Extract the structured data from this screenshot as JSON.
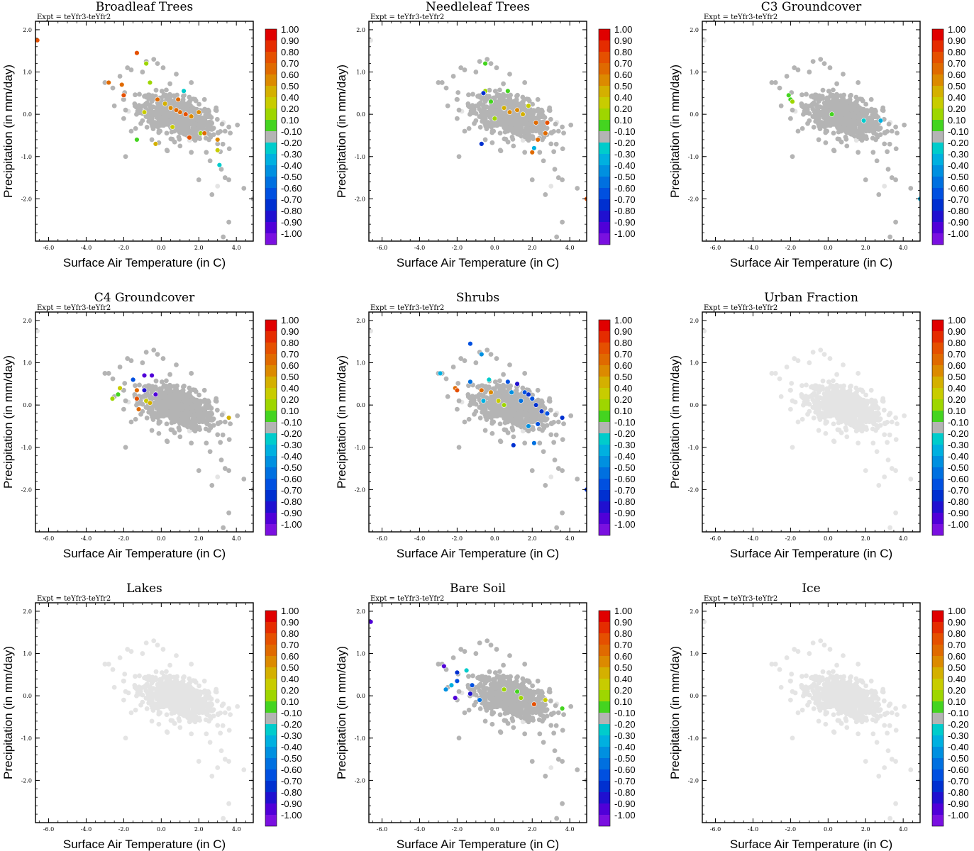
{
  "figure": {
    "expt_label": "Expt = teYfr3-teYfr2"
  },
  "colorbar": {
    "labels": [
      "1.00",
      "0.90",
      "0.80",
      "0.70",
      "0.60",
      "0.50",
      "0.40",
      "0.20",
      "0.10",
      "-0.10",
      "-0.20",
      "-0.30",
      "-0.40",
      "-0.50",
      "-0.60",
      "-0.70",
      "-0.80",
      "-0.90",
      "-1.00"
    ],
    "colors": [
      "#e00000",
      "#e52c00",
      "#e55000",
      "#e06a00",
      "#dc8a00",
      "#d4b000",
      "#c8cc00",
      "#9ed600",
      "#44d420",
      "#b4b4b4",
      "#00cccc",
      "#00b0e0",
      "#0090e0",
      "#0070e0",
      "#0050e0",
      "#0030d0",
      "#2010d0",
      "#5000d8",
      "#7a10e0"
    ]
  },
  "chart_data": [
    {
      "type": "scatter",
      "title": "Broadleaf Trees",
      "xlabel": "Surface Air Temperature (in C)",
      "ylabel": "Precipitation (in mm/day)",
      "xlim": [
        -6.7,
        4.9
      ],
      "ylim": [
        -3.0,
        2.2
      ],
      "xticks": [
        "-6.0",
        "-4.0",
        "-2.0",
        "0.0",
        "2.0",
        "4.0"
      ],
      "yticks": [
        "2.0",
        "1.0",
        "0.0",
        "-1.0",
        "-2.0"
      ],
      "background_points": "gray",
      "highlight_points": [
        {
          "x": 1.0,
          "y": 0.05,
          "v": 0.7
        },
        {
          "x": 1.3,
          "y": 0.0,
          "v": 0.75
        },
        {
          "x": 0.8,
          "y": 0.1,
          "v": 0.65
        },
        {
          "x": 0.5,
          "y": 0.15,
          "v": 0.55
        },
        {
          "x": 1.6,
          "y": -0.05,
          "v": 0.6
        },
        {
          "x": 0.2,
          "y": 0.25,
          "v": 0.45
        },
        {
          "x": -0.2,
          "y": 0.35,
          "v": 0.7
        },
        {
          "x": -1.3,
          "y": 1.45,
          "v": 0.75
        },
        {
          "x": -2.1,
          "y": 0.7,
          "v": 0.7
        },
        {
          "x": -2.0,
          "y": 0.45,
          "v": 0.75
        },
        {
          "x": -2.8,
          "y": 0.75,
          "v": 0.7
        },
        {
          "x": -0.6,
          "y": 0.75,
          "v": 0.2
        },
        {
          "x": -0.8,
          "y": 1.2,
          "v": 0.2
        },
        {
          "x": 1.2,
          "y": 0.55,
          "v": -0.2
        },
        {
          "x": 2.1,
          "y": -0.45,
          "v": 0.2
        },
        {
          "x": 3.0,
          "y": -0.85,
          "v": 0.4
        },
        {
          "x": 3.0,
          "y": -0.6,
          "v": 0.6
        },
        {
          "x": 3.1,
          "y": -1.2,
          "v": -0.25
        },
        {
          "x": 2.3,
          "y": -0.45,
          "v": 0.7
        },
        {
          "x": 1.5,
          "y": -0.55,
          "v": 0.75
        },
        {
          "x": -0.3,
          "y": -0.7,
          "v": 0.5
        },
        {
          "x": -1.3,
          "y": -0.6,
          "v": 0.15
        },
        {
          "x": -6.6,
          "y": 1.75,
          "v": 0.8
        },
        {
          "x": 0.6,
          "y": -0.3,
          "v": 0.4
        },
        {
          "x": 0.9,
          "y": 0.35,
          "v": 0.7
        },
        {
          "x": 2.0,
          "y": 0.05,
          "v": 0.55
        },
        {
          "x": -0.9,
          "y": 0.05,
          "v": 0.35
        }
      ]
    },
    {
      "type": "scatter",
      "title": "Needleleaf Trees",
      "xlabel": "Surface Air Temperature (in C)",
      "ylabel": "Precipitation (in mm/day)",
      "xlim": [
        -6.7,
        4.9
      ],
      "ylim": [
        -3.0,
        2.2
      ],
      "xticks": [
        "-6.0",
        "-4.0",
        "-2.0",
        "0.0",
        "2.0",
        "4.0"
      ],
      "yticks": [
        "2.0",
        "1.0",
        "0.0",
        "-1.0",
        "-2.0"
      ],
      "background_points": "gray",
      "highlight_points": [
        {
          "x": 0.8,
          "y": 0.05,
          "v": 0.6
        },
        {
          "x": 1.2,
          "y": 0.1,
          "v": 0.55
        },
        {
          "x": 0.5,
          "y": 0.15,
          "v": 0.45
        },
        {
          "x": 1.5,
          "y": 0.0,
          "v": 0.5
        },
        {
          "x": -0.5,
          "y": 0.55,
          "v": 0.2
        },
        {
          "x": -0.2,
          "y": 0.3,
          "v": 0.15
        },
        {
          "x": -0.5,
          "y": 1.2,
          "v": 0.15
        },
        {
          "x": 0.7,
          "y": 0.55,
          "v": 0.15
        },
        {
          "x": 2.2,
          "y": -0.2,
          "v": 0.7
        },
        {
          "x": 2.8,
          "y": -0.2,
          "v": 0.75
        },
        {
          "x": 2.7,
          "y": -0.45,
          "v": 0.7
        },
        {
          "x": 2.0,
          "y": -0.9,
          "v": 0.7
        },
        {
          "x": 2.3,
          "y": -0.6,
          "v": 0.7
        },
        {
          "x": 2.1,
          "y": -0.8,
          "v": -0.3
        },
        {
          "x": -0.7,
          "y": -0.7,
          "v": -0.7
        },
        {
          "x": -0.6,
          "y": 0.5,
          "v": -0.7
        },
        {
          "x": 4.9,
          "y": -2.0,
          "v": 0.8
        },
        {
          "x": 0.0,
          "y": -0.1,
          "v": 0.3
        },
        {
          "x": 1.8,
          "y": 0.2,
          "v": 0.4
        }
      ]
    },
    {
      "type": "scatter",
      "title": "C3 Groundcover",
      "xlabel": "Surface Air Temperature (in C)",
      "ylabel": "Precipitation (in mm/day)",
      "xlim": [
        -6.7,
        4.9
      ],
      "ylim": [
        -3.0,
        2.2
      ],
      "xticks": [
        "-6.0",
        "-4.0",
        "-2.0",
        "0.0",
        "2.0",
        "4.0"
      ],
      "yticks": [
        "2.0",
        "1.0",
        "0.0",
        "-1.0",
        "-2.0"
      ],
      "background_points": "gray",
      "highlight_points": [
        {
          "x": -2.1,
          "y": 0.45,
          "v": 0.15
        },
        {
          "x": -2.0,
          "y": 0.35,
          "v": 0.15
        },
        {
          "x": -1.9,
          "y": 0.3,
          "v": 0.2
        },
        {
          "x": 0.2,
          "y": 0.0,
          "v": 0.15
        },
        {
          "x": 2.8,
          "y": -0.15,
          "v": -0.3
        },
        {
          "x": 1.9,
          "y": -0.15,
          "v": -0.2
        },
        {
          "x": 4.9,
          "y": -2.0,
          "v": -0.3
        }
      ]
    },
    {
      "type": "scatter",
      "title": "C4 Groundcover",
      "xlabel": "Surface Air Temperature (in C)",
      "ylabel": "Precipitation (in mm/day)",
      "xlim": [
        -6.7,
        4.9
      ],
      "ylim": [
        -3.0,
        2.2
      ],
      "xticks": [
        "-6.0",
        "-4.0",
        "-2.0",
        "0.0",
        "2.0",
        "4.0"
      ],
      "yticks": [
        "2.0",
        "1.0",
        "0.0",
        "-1.0",
        "-2.0"
      ],
      "background_points": "gray",
      "highlight_points": [
        {
          "x": -2.6,
          "y": 0.15,
          "v": 0.2
        },
        {
          "x": -2.3,
          "y": 0.25,
          "v": 0.15
        },
        {
          "x": -2.2,
          "y": 0.4,
          "v": 0.4
        },
        {
          "x": -1.5,
          "y": 0.6,
          "v": -0.6
        },
        {
          "x": -1.3,
          "y": 0.35,
          "v": 0.7
        },
        {
          "x": -1.3,
          "y": 0.15,
          "v": 0.75
        },
        {
          "x": -0.8,
          "y": 0.1,
          "v": 0.4
        },
        {
          "x": -0.6,
          "y": 0.05,
          "v": 0.5
        },
        {
          "x": -0.9,
          "y": 0.7,
          "v": -0.9
        },
        {
          "x": -0.5,
          "y": 0.7,
          "v": -0.9
        },
        {
          "x": -0.9,
          "y": 0.35,
          "v": -0.8
        },
        {
          "x": -1.2,
          "y": -0.1,
          "v": 0.7
        },
        {
          "x": 3.6,
          "y": -0.3,
          "v": 0.5
        },
        {
          "x": -0.3,
          "y": 0.25,
          "v": -0.9
        }
      ]
    },
    {
      "type": "scatter",
      "title": "Shrubs",
      "xlabel": "Surface Air Temperature (in C)",
      "ylabel": "Precipitation (in mm/day)",
      "xlim": [
        -6.7,
        4.9
      ],
      "ylim": [
        -3.0,
        2.2
      ],
      "xticks": [
        "-6.0",
        "-4.0",
        "-2.0",
        "0.0",
        "2.0",
        "4.0"
      ],
      "yticks": [
        "2.0",
        "1.0",
        "0.0",
        "-1.0",
        "-2.0"
      ],
      "background_points": "gray",
      "highlight_points": [
        {
          "x": -1.3,
          "y": 1.45,
          "v": -0.6
        },
        {
          "x": -0.7,
          "y": 1.2,
          "v": -0.4
        },
        {
          "x": -2.9,
          "y": 0.75,
          "v": -0.3
        },
        {
          "x": -2.1,
          "y": 0.4,
          "v": 0.7
        },
        {
          "x": -2.0,
          "y": 0.35,
          "v": 0.75
        },
        {
          "x": -1.3,
          "y": 0.55,
          "v": -0.5
        },
        {
          "x": -0.3,
          "y": 0.6,
          "v": -0.2
        },
        {
          "x": 0.7,
          "y": 0.55,
          "v": -0.6
        },
        {
          "x": 1.2,
          "y": 0.5,
          "v": -0.8
        },
        {
          "x": 1.6,
          "y": 0.3,
          "v": -0.6
        },
        {
          "x": 1.8,
          "y": 0.25,
          "v": -0.7
        },
        {
          "x": 2.0,
          "y": 0.15,
          "v": -0.6
        },
        {
          "x": 2.2,
          "y": 0.0,
          "v": -0.7
        },
        {
          "x": 2.5,
          "y": -0.15,
          "v": -0.7
        },
        {
          "x": 2.8,
          "y": -0.2,
          "v": -0.6
        },
        {
          "x": 3.6,
          "y": -0.3,
          "v": -0.7
        },
        {
          "x": 2.3,
          "y": -0.45,
          "v": -0.6
        },
        {
          "x": 1.8,
          "y": -0.5,
          "v": -0.4
        },
        {
          "x": 2.1,
          "y": -0.9,
          "v": -0.5
        },
        {
          "x": 1.0,
          "y": -0.95,
          "v": -0.7
        },
        {
          "x": 0.5,
          "y": 0.0,
          "v": 0.2
        },
        {
          "x": 0.2,
          "y": 0.1,
          "v": 0.4
        },
        {
          "x": -0.2,
          "y": 0.3,
          "v": 0.6
        },
        {
          "x": -0.7,
          "y": 0.35,
          "v": 0.7
        },
        {
          "x": -0.6,
          "y": 0.1,
          "v": -0.3
        },
        {
          "x": 4.9,
          "y": -2.0,
          "v": -0.7
        },
        {
          "x": 1.4,
          "y": 0.1,
          "v": -0.5
        },
        {
          "x": 0.9,
          "y": 0.3,
          "v": -0.4
        }
      ]
    },
    {
      "type": "scatter",
      "title": "Urban Fraction",
      "xlabel": "Surface Air Temperature (in C)",
      "ylabel": "Precipitation (in mm/day)",
      "xlim": [
        -6.7,
        4.9
      ],
      "ylim": [
        -3.0,
        2.2
      ],
      "xticks": [
        "-6.0",
        "-4.0",
        "-2.0",
        "0.0",
        "2.0",
        "4.0"
      ],
      "yticks": [
        "2.0",
        "1.0",
        "0.0",
        "-1.0",
        "-2.0"
      ],
      "background_points": "light",
      "highlight_points": []
    },
    {
      "type": "scatter",
      "title": "Lakes",
      "xlabel": "Surface Air Temperature (in C)",
      "ylabel": "Precipitation (in mm/day)",
      "xlim": [
        -6.7,
        4.9
      ],
      "ylim": [
        -3.0,
        2.2
      ],
      "xticks": [
        "-6.0",
        "-4.0",
        "-2.0",
        "0.0",
        "2.0",
        "4.0"
      ],
      "yticks": [
        "2.0",
        "1.0",
        "0.0",
        "-1.0",
        "-2.0"
      ],
      "background_points": "light",
      "highlight_points": []
    },
    {
      "type": "scatter",
      "title": "Bare Soil",
      "xlabel": "Surface Air Temperature (in C)",
      "ylabel": "Precipitation (in mm/day)",
      "xlim": [
        -6.7,
        4.9
      ],
      "ylim": [
        -3.0,
        2.2
      ],
      "xticks": [
        "-6.0",
        "-4.0",
        "-2.0",
        "0.0",
        "2.0",
        "4.0"
      ],
      "yticks": [
        "2.0",
        "1.0",
        "0.0",
        "-1.0",
        "-2.0"
      ],
      "background_points": "gray",
      "highlight_points": [
        {
          "x": -6.6,
          "y": 1.75,
          "v": -0.9
        },
        {
          "x": -2.7,
          "y": 0.7,
          "v": -0.9
        },
        {
          "x": -2.0,
          "y": 0.55,
          "v": -0.7
        },
        {
          "x": -2.0,
          "y": 0.35,
          "v": -0.6
        },
        {
          "x": -2.6,
          "y": 0.15,
          "v": -0.4
        },
        {
          "x": -2.3,
          "y": 0.25,
          "v": -0.3
        },
        {
          "x": -2.1,
          "y": -0.05,
          "v": -0.9
        },
        {
          "x": -1.5,
          "y": 0.6,
          "v": -0.2
        },
        {
          "x": -1.2,
          "y": 0.25,
          "v": -0.6
        },
        {
          "x": -1.3,
          "y": 0.05,
          "v": -0.8
        },
        {
          "x": 0.5,
          "y": 0.15,
          "v": 0.2
        },
        {
          "x": 1.2,
          "y": 0.1,
          "v": 0.15
        },
        {
          "x": 2.1,
          "y": -0.2,
          "v": 0.8
        },
        {
          "x": 2.7,
          "y": -0.1,
          "v": 0.4
        },
        {
          "x": 3.6,
          "y": -0.3,
          "v": 0.15
        },
        {
          "x": 1.4,
          "y": -0.05,
          "v": 0.3
        },
        {
          "x": -0.8,
          "y": -0.1,
          "v": -0.5
        }
      ]
    },
    {
      "type": "scatter",
      "title": "Ice",
      "xlabel": "Surface Air Temperature (in C)",
      "ylabel": "Precipitation (in mm/day)",
      "xlim": [
        -6.7,
        4.9
      ],
      "ylim": [
        -3.0,
        2.2
      ],
      "xticks": [
        "-6.0",
        "-4.0",
        "-2.0",
        "0.0",
        "2.0",
        "4.0"
      ],
      "yticks": [
        "2.0",
        "1.0",
        "0.0",
        "-1.0",
        "-2.0"
      ],
      "background_points": "light",
      "highlight_points": []
    }
  ]
}
